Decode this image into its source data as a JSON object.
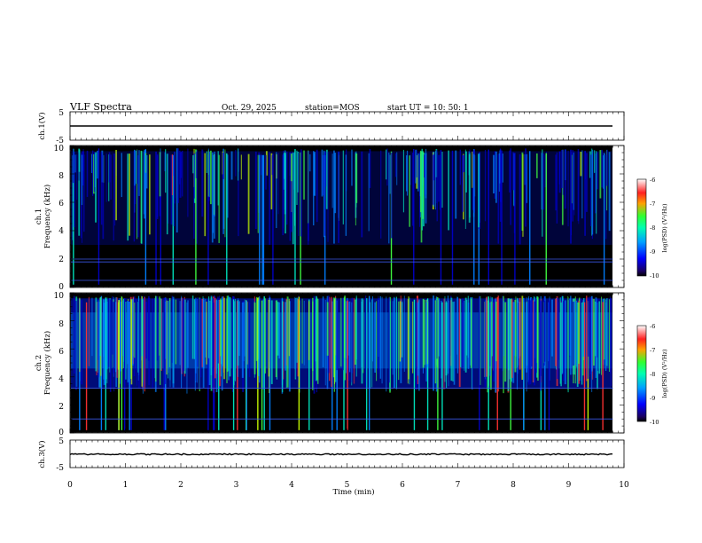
{
  "header": {
    "title": "VLF Spectra",
    "date": "Oct. 29, 2025",
    "station": "station=MOS",
    "start": "start  UT  =   10: 50: 1"
  },
  "chart_data": [
    {
      "type": "line",
      "panel": "ch1-voltage",
      "ylabel": "ch.1(V)",
      "ylim": [
        -5,
        5
      ],
      "yticks": [
        "5",
        "-5"
      ],
      "baseline": 0
    },
    {
      "type": "heatmap",
      "panel": "ch1-spectrogram",
      "ylabel": "ch.1\nFrequency (kHz)",
      "ylim": [
        0,
        10
      ],
      "yticks": [
        "10",
        "8",
        "6",
        "4",
        "2",
        "0"
      ],
      "colorbar": {
        "label": "log(PSD) (V²/Hz)",
        "range": [
          -10,
          -6
        ],
        "ticks": [
          "-6",
          "-7",
          "-8",
          "-9",
          "-10"
        ]
      }
    },
    {
      "type": "heatmap",
      "panel": "ch2-spectrogram",
      "ylabel": "ch.2\nFrequency (kHz)",
      "ylim": [
        0,
        10
      ],
      "yticks": [
        "10",
        "8",
        "6",
        "4",
        "2",
        "0"
      ],
      "colorbar": {
        "label": "log(PSD) (V²/Hz)",
        "range": [
          -10,
          -6
        ],
        "ticks": [
          "-6",
          "-7",
          "-8",
          "-9",
          "-10"
        ]
      }
    },
    {
      "type": "line",
      "panel": "ch3-voltage",
      "ylabel": "ch.3(V)",
      "ylim": [
        -5,
        5
      ],
      "yticks": [
        "5",
        "-5"
      ],
      "baseline": 0
    }
  ],
  "xaxis": {
    "label": "Time  (min)",
    "xlim": [
      0,
      10
    ],
    "ticks": [
      "0",
      "1",
      "2",
      "3",
      "4",
      "5",
      "6",
      "7",
      "8",
      "9",
      "10"
    ],
    "data_end": 9.8
  },
  "labels": {
    "ch1_v": "ch.1(V)",
    "ch1_freq_a": "ch.1",
    "ch1_freq_b": "Frequency (kHz)",
    "ch2_freq_a": "ch.2",
    "ch2_freq_b": "Frequency (kHz)",
    "ch3_v": "ch.3(V)",
    "colorbar_label": "log(PSD) (V²/Hz)"
  },
  "colors": {
    "background": "#000000",
    "low": "#0000aa",
    "mid": "#00b4ff",
    "high": "#22ff66",
    "peak": "#ff2222"
  }
}
